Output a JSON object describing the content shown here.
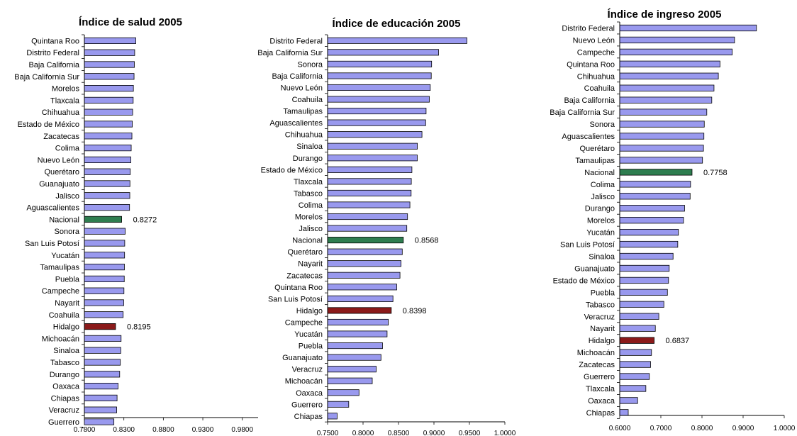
{
  "colors": {
    "bar": "#9999ee",
    "highlight_national": "#2e7d4f",
    "highlight_hidalgo": "#8b1a1a",
    "outline": "#000000"
  },
  "chart_data": [
    {
      "type": "bar",
      "orientation": "horizontal",
      "title": "Índice de salud 2005",
      "xlim": [
        0.78,
        1.0
      ],
      "xticks": [
        "0.7800",
        "0.8300",
        "0.8800",
        "0.9300",
        "0.9800"
      ],
      "xtick_values": [
        0.78,
        0.83,
        0.88,
        0.93,
        0.98
      ],
      "categories": [
        "Quintana Roo",
        "Distrito Federal",
        "Baja California",
        "Baja California Sur",
        "Morelos",
        "Tlaxcala",
        "Chihuahua",
        "Estado de México",
        "Zacatecas",
        "Colima",
        "Nuevo León",
        "Querétaro",
        "Guanajuato",
        "Jalisco",
        "Aguascalientes",
        "Nacional",
        "Sonora",
        "San Luis Potosí",
        "Yucatán",
        "Tamaulipas",
        "Puebla",
        "Campeche",
        "Nayarit",
        "Coahuila",
        "Hidalgo",
        "Michoacán",
        "Sinaloa",
        "Tabasco",
        "Durango",
        "Oaxaca",
        "Chiapas",
        "Veracruz",
        "Guerrero"
      ],
      "values": [
        0.8451,
        0.8437,
        0.8433,
        0.8429,
        0.8421,
        0.8418,
        0.8411,
        0.8407,
        0.8402,
        0.8393,
        0.8388,
        0.8381,
        0.8377,
        0.8375,
        0.8372,
        0.8272,
        0.8317,
        0.8311,
        0.8309,
        0.8307,
        0.8305,
        0.8301,
        0.8298,
        0.8291,
        0.8195,
        0.8265,
        0.8261,
        0.8255,
        0.8247,
        0.8226,
        0.8214,
        0.8209,
        0.8174
      ],
      "highlights": {
        "Nacional": {
          "color": "highlight_national",
          "label": "0.8272"
        },
        "Hidalgo": {
          "color": "highlight_hidalgo",
          "label": "0.8195"
        }
      }
    },
    {
      "type": "bar",
      "orientation": "horizontal",
      "title": "Índice de educación 2005",
      "xlim": [
        0.75,
        1.0
      ],
      "xticks": [
        "0.7500",
        "0.8000",
        "0.8500",
        "0.9000",
        "0.9500",
        "1.0000"
      ],
      "xtick_values": [
        0.75,
        0.8,
        0.85,
        0.9,
        0.95,
        1.0
      ],
      "categories": [
        "Distrito Federal",
        "Baja California Sur",
        "Sonora",
        "Baja California",
        "Nuevo León",
        "Coahuila",
        "Tamaulipas",
        "Aguascalientes",
        "Chihuahua",
        "Sinaloa",
        "Durango",
        "Estado de México",
        "Tlaxcala",
        "Tabasco",
        "Colima",
        "Morelos",
        "Jalisco",
        "Nacional",
        "Querétaro",
        "Nayarit",
        "Zacatecas",
        "Quintana Roo",
        "San Luis Potosí",
        "Hidalgo",
        "Campeche",
        "Yucatán",
        "Puebla",
        "Guanajuato",
        "Veracruz",
        "Michoacán",
        "Oaxaca",
        "Guerrero",
        "Chiapas"
      ],
      "values": [
        0.9465,
        0.9065,
        0.8967,
        0.8962,
        0.8948,
        0.8935,
        0.8889,
        0.8883,
        0.8831,
        0.8766,
        0.8765,
        0.8689,
        0.8681,
        0.8678,
        0.8661,
        0.8627,
        0.8617,
        0.8568,
        0.8553,
        0.8536,
        0.8521,
        0.8475,
        0.8422,
        0.8398,
        0.8356,
        0.8339,
        0.8275,
        0.8253,
        0.8185,
        0.813,
        0.7943,
        0.7798,
        0.7634
      ],
      "highlights": {
        "Nacional": {
          "color": "highlight_national",
          "label": "0.8568"
        },
        "Hidalgo": {
          "color": "highlight_hidalgo",
          "label": "0.8398"
        }
      }
    },
    {
      "type": "bar",
      "orientation": "horizontal",
      "title": "Índice de ingreso 2005",
      "xlim": [
        0.6,
        1.0
      ],
      "xticks": [
        "0.6000",
        "0.7000",
        "0.8000",
        "0.9000",
        "1.0000"
      ],
      "xtick_values": [
        0.6,
        0.7,
        0.8,
        0.9,
        1.0
      ],
      "categories": [
        "Distrito Federal",
        "Nuevo León",
        "Campeche",
        "Quintana Roo",
        "Chihuahua",
        "Coahuila",
        "Baja California",
        "Baja California Sur",
        "Sonora",
        "Aguascalientes",
        "Querétaro",
        "Tamaulipas",
        "Nacional",
        "Colima",
        "Jalisco",
        "Durango",
        "Morelos",
        "Yucatán",
        "San Luis Potosí",
        "Sinaloa",
        "Guanajuato",
        "Estado de México",
        "Puebla",
        "Tabasco",
        "Veracruz",
        "Nayarit",
        "Hidalgo",
        "Michoacán",
        "Zacatecas",
        "Guerrero",
        "Tlaxcala",
        "Oaxaca",
        "Chiapas"
      ],
      "values": [
        0.9324,
        0.8791,
        0.8735,
        0.8437,
        0.8398,
        0.8292,
        0.8238,
        0.8117,
        0.8056,
        0.8047,
        0.8037,
        0.8012,
        0.7758,
        0.7722,
        0.7712,
        0.7577,
        0.755,
        0.7426,
        0.7411,
        0.7297,
        0.7203,
        0.7186,
        0.716,
        0.7073,
        0.695,
        0.6866,
        0.6837,
        0.6772,
        0.675,
        0.672,
        0.6635,
        0.6435,
        0.6207
      ],
      "highlights": {
        "Nacional": {
          "color": "highlight_national",
          "label": "0.7758"
        },
        "Hidalgo": {
          "color": "highlight_hidalgo",
          "label": "0.6837"
        }
      }
    }
  ]
}
